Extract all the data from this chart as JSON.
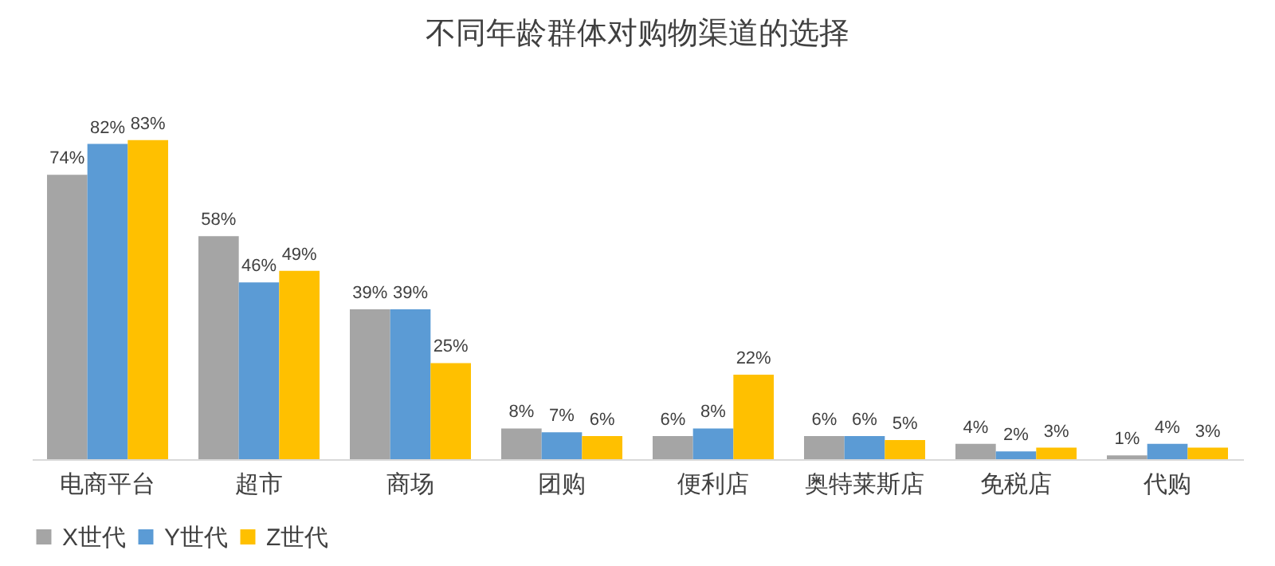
{
  "chart_data": {
    "type": "bar",
    "title": "不同年龄群体对购物渠道的选择",
    "categories": [
      "电商平台",
      "超市",
      "商场",
      "团购",
      "便利店",
      "奥特莱斯店",
      "免税店",
      "代购"
    ],
    "series": [
      {
        "name": "X世代",
        "color": "#a5a5a5",
        "values": [
          74,
          58,
          39,
          8,
          6,
          6,
          4,
          1
        ],
        "value_labels": [
          "74%",
          "58%",
          "39%",
          "8%",
          "6%",
          "6%",
          "4%",
          "1%"
        ]
      },
      {
        "name": "Y世代",
        "color": "#5b9bd5",
        "values": [
          82,
          46,
          39,
          7,
          8,
          6,
          2,
          4
        ],
        "value_labels": [
          "82%",
          "46%",
          "39%",
          "7%",
          "8%",
          "6%",
          "2%",
          "4%"
        ]
      },
      {
        "name": "Z世代",
        "color": "#ffc000",
        "values": [
          83,
          49,
          25,
          6,
          22,
          5,
          3,
          3
        ],
        "value_labels": [
          "83%",
          "49%",
          "25%",
          "6%",
          "22%",
          "5%",
          "3%",
          "3%"
        ]
      }
    ],
    "legend": "bottom",
    "grid": false
  }
}
